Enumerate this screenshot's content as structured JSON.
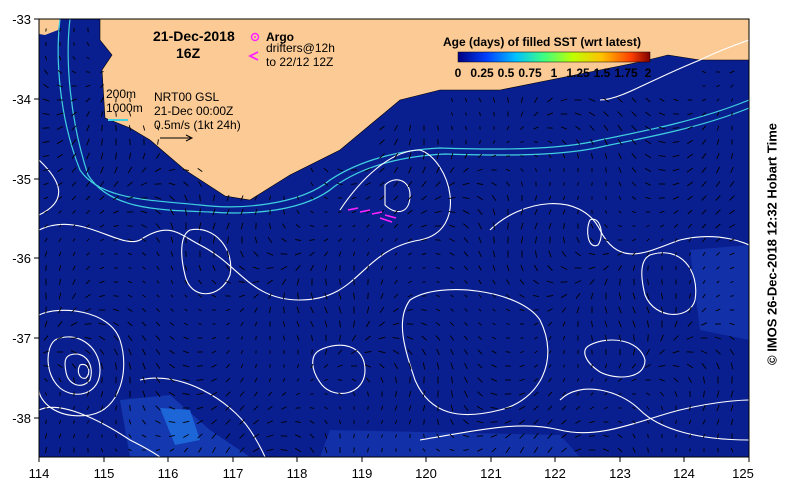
{
  "map": {
    "date": "21-Dec-2018",
    "hour": "16Z",
    "argo_label": "Argo",
    "drifters_line1": "drifters@12h",
    "drifters_line2": "to 22/12 12Z",
    "isobath_200": "200m",
    "isobath_1000": "1000m",
    "product_line1": "NRT00 GSL",
    "product_line2": "21-Dec 00:00Z",
    "product_line3": "0.5m/s (1kt 24h)",
    "colorbar_title": "Age (days) of filled SST (wrt latest)",
    "colorbar_ticks": [
      "0",
      "0.25",
      "0.5",
      "0.75",
      "1",
      "1.25",
      "1.5",
      "1.75",
      "2"
    ],
    "credit": "© IMOS 26-Dec-2018 12:32 Hobart Time",
    "x_ticks": [
      "114",
      "115",
      "116",
      "117",
      "118",
      "119",
      "120",
      "121",
      "122",
      "123",
      "124",
      "125"
    ],
    "y_ticks": [
      "-33",
      "-34",
      "-35",
      "-36",
      "-37",
      "-38"
    ],
    "colors": {
      "ocean": "#0a1f8f",
      "land": "#fccb95",
      "contour": "#ffffff",
      "isobath": "#40d0e0",
      "drifter": "#ff22ff",
      "frame": "#000000"
    },
    "icons": [
      "argo-float-icon",
      "drifter-arrow-icon",
      "current-scale-arrow-icon"
    ]
  }
}
